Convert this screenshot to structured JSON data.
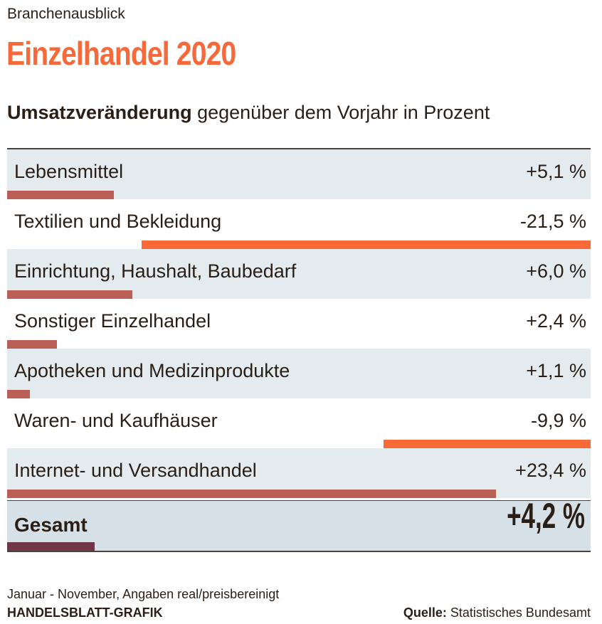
{
  "kicker": "Branchenausblick",
  "title": "Einzelhandel 2020",
  "subtitle_bold": "Umsatzveränderung",
  "subtitle_rest": " gegenüber dem Vorjahr in Prozent",
  "note": "Januar - November, Angaben real/preisbereinigt",
  "credit": "HANDELSBLATT-GRAFIK",
  "source_label": "Quelle:",
  "source_text": " Statistisches Bundesamt",
  "colors": {
    "positive": "#b95f55",
    "negative": "#f96a36",
    "total": "#6e3646",
    "title": "#f5693a",
    "row_shade": "#e3ebef"
  },
  "chart_data": {
    "type": "bar",
    "title": "Umsatzveränderung gegenüber dem Vorjahr in Prozent",
    "categories": [
      "Lebensmittel",
      "Textilien und Bekleidung",
      "Einrichtung, Haushalt, Baubedarf",
      "Sonstiger Einzelhandel",
      "Apotheken und Medizinprodukte",
      "Waren- und Kaufhäuser",
      "Internet- und Versandhandel"
    ],
    "values": [
      5.1,
      -21.5,
      6.0,
      2.4,
      1.1,
      -9.9,
      23.4
    ],
    "labels": [
      "+5,1 %",
      "-21,5 %",
      "+6,0 %",
      "+2,4 %",
      "+1,1 %",
      "-9,9 %",
      "+23,4 %"
    ],
    "total": {
      "label": "Gesamt",
      "value": 4.2,
      "display": "+4,2 %"
    }
  }
}
